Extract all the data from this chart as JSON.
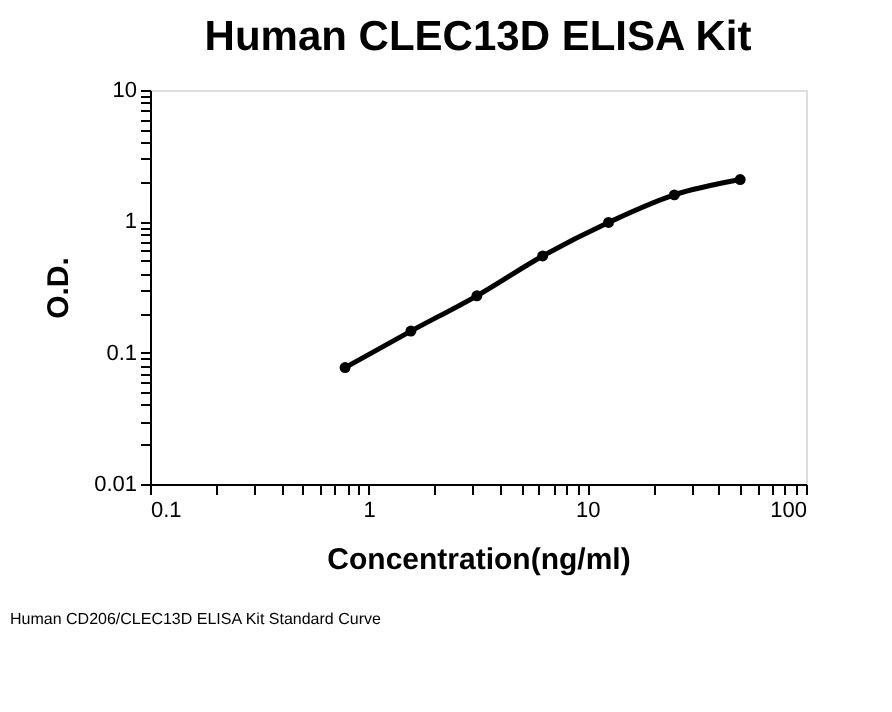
{
  "chart_data": {
    "type": "line",
    "title": "Human CLEC13D ELISA Kit",
    "xlabel": "Concentration(ng/ml)",
    "ylabel": "O.D.",
    "annotations": [
      "Human CD206/CLEC13D ELISA Kit Standard Curve"
    ],
    "log": "xy",
    "grid": false,
    "marker": "circle",
    "line_style": "solid",
    "xlim": [
      0.1,
      100
    ],
    "ylim": [
      0.01,
      10
    ],
    "xticks": [
      0.1,
      {
        "value": 0.2,
        "label": null
      },
      {
        "value": 0.3,
        "label": null
      },
      {
        "value": 0.4,
        "label": null
      },
      {
        "value": 0.5,
        "label": null
      },
      {
        "value": 0.6,
        "label": null
      },
      {
        "value": 0.7,
        "label": null
      },
      {
        "value": 0.8,
        "label": null
      },
      {
        "value": 0.9,
        "label": null
      },
      1,
      {
        "value": 2,
        "label": null
      },
      {
        "value": 3,
        "label": null
      },
      {
        "value": 4,
        "label": null
      },
      {
        "value": 5,
        "label": null
      },
      {
        "value": 6,
        "label": null
      },
      {
        "value": 7,
        "label": null
      },
      {
        "value": 8,
        "label": null
      },
      {
        "value": 9,
        "label": null
      },
      10,
      {
        "value": 20,
        "label": null
      },
      {
        "value": 30,
        "label": null
      },
      {
        "value": 40,
        "label": null
      },
      {
        "value": 50,
        "label": null
      },
      {
        "value": 60,
        "label": null
      },
      {
        "value": 70,
        "label": null
      },
      {
        "value": 80,
        "label": null
      },
      {
        "value": 90,
        "label": null
      },
      100
    ],
    "yticks": [
      0.01,
      {
        "value": 0.02,
        "label": null
      },
      {
        "value": 0.03,
        "label": null
      },
      {
        "value": 0.04,
        "label": null
      },
      {
        "value": 0.05,
        "label": null
      },
      {
        "value": 0.06,
        "label": null
      },
      {
        "value": 0.07,
        "label": null
      },
      {
        "value": 0.08,
        "label": null
      },
      {
        "value": 0.09,
        "label": null
      },
      0.1,
      {
        "value": 0.2,
        "label": null
      },
      {
        "value": 0.3,
        "label": null
      },
      {
        "value": 0.4,
        "label": null
      },
      {
        "value": 0.5,
        "label": null
      },
      {
        "value": 0.6,
        "label": null
      },
      {
        "value": 0.7,
        "label": null
      },
      {
        "value": 0.8,
        "label": null
      },
      {
        "value": 0.9,
        "label": null
      },
      1,
      {
        "value": 2,
        "label": null
      },
      {
        "value": 3,
        "label": null
      },
      {
        "value": 4,
        "label": null
      },
      {
        "value": 5,
        "label": null
      },
      {
        "value": 6,
        "label": null
      },
      {
        "value": 7,
        "label": null
      },
      {
        "value": 8,
        "label": null
      },
      {
        "value": 9,
        "label": null
      },
      10
    ],
    "x": [
      0.78,
      1.56,
      3.125,
      6.25,
      12.5,
      25,
      50
    ],
    "series": [
      {
        "color": "#000000",
        "values": [
          0.077,
          0.146,
          0.271,
          0.545,
          0.98,
          1.59,
          2.08
        ]
      }
    ]
  }
}
